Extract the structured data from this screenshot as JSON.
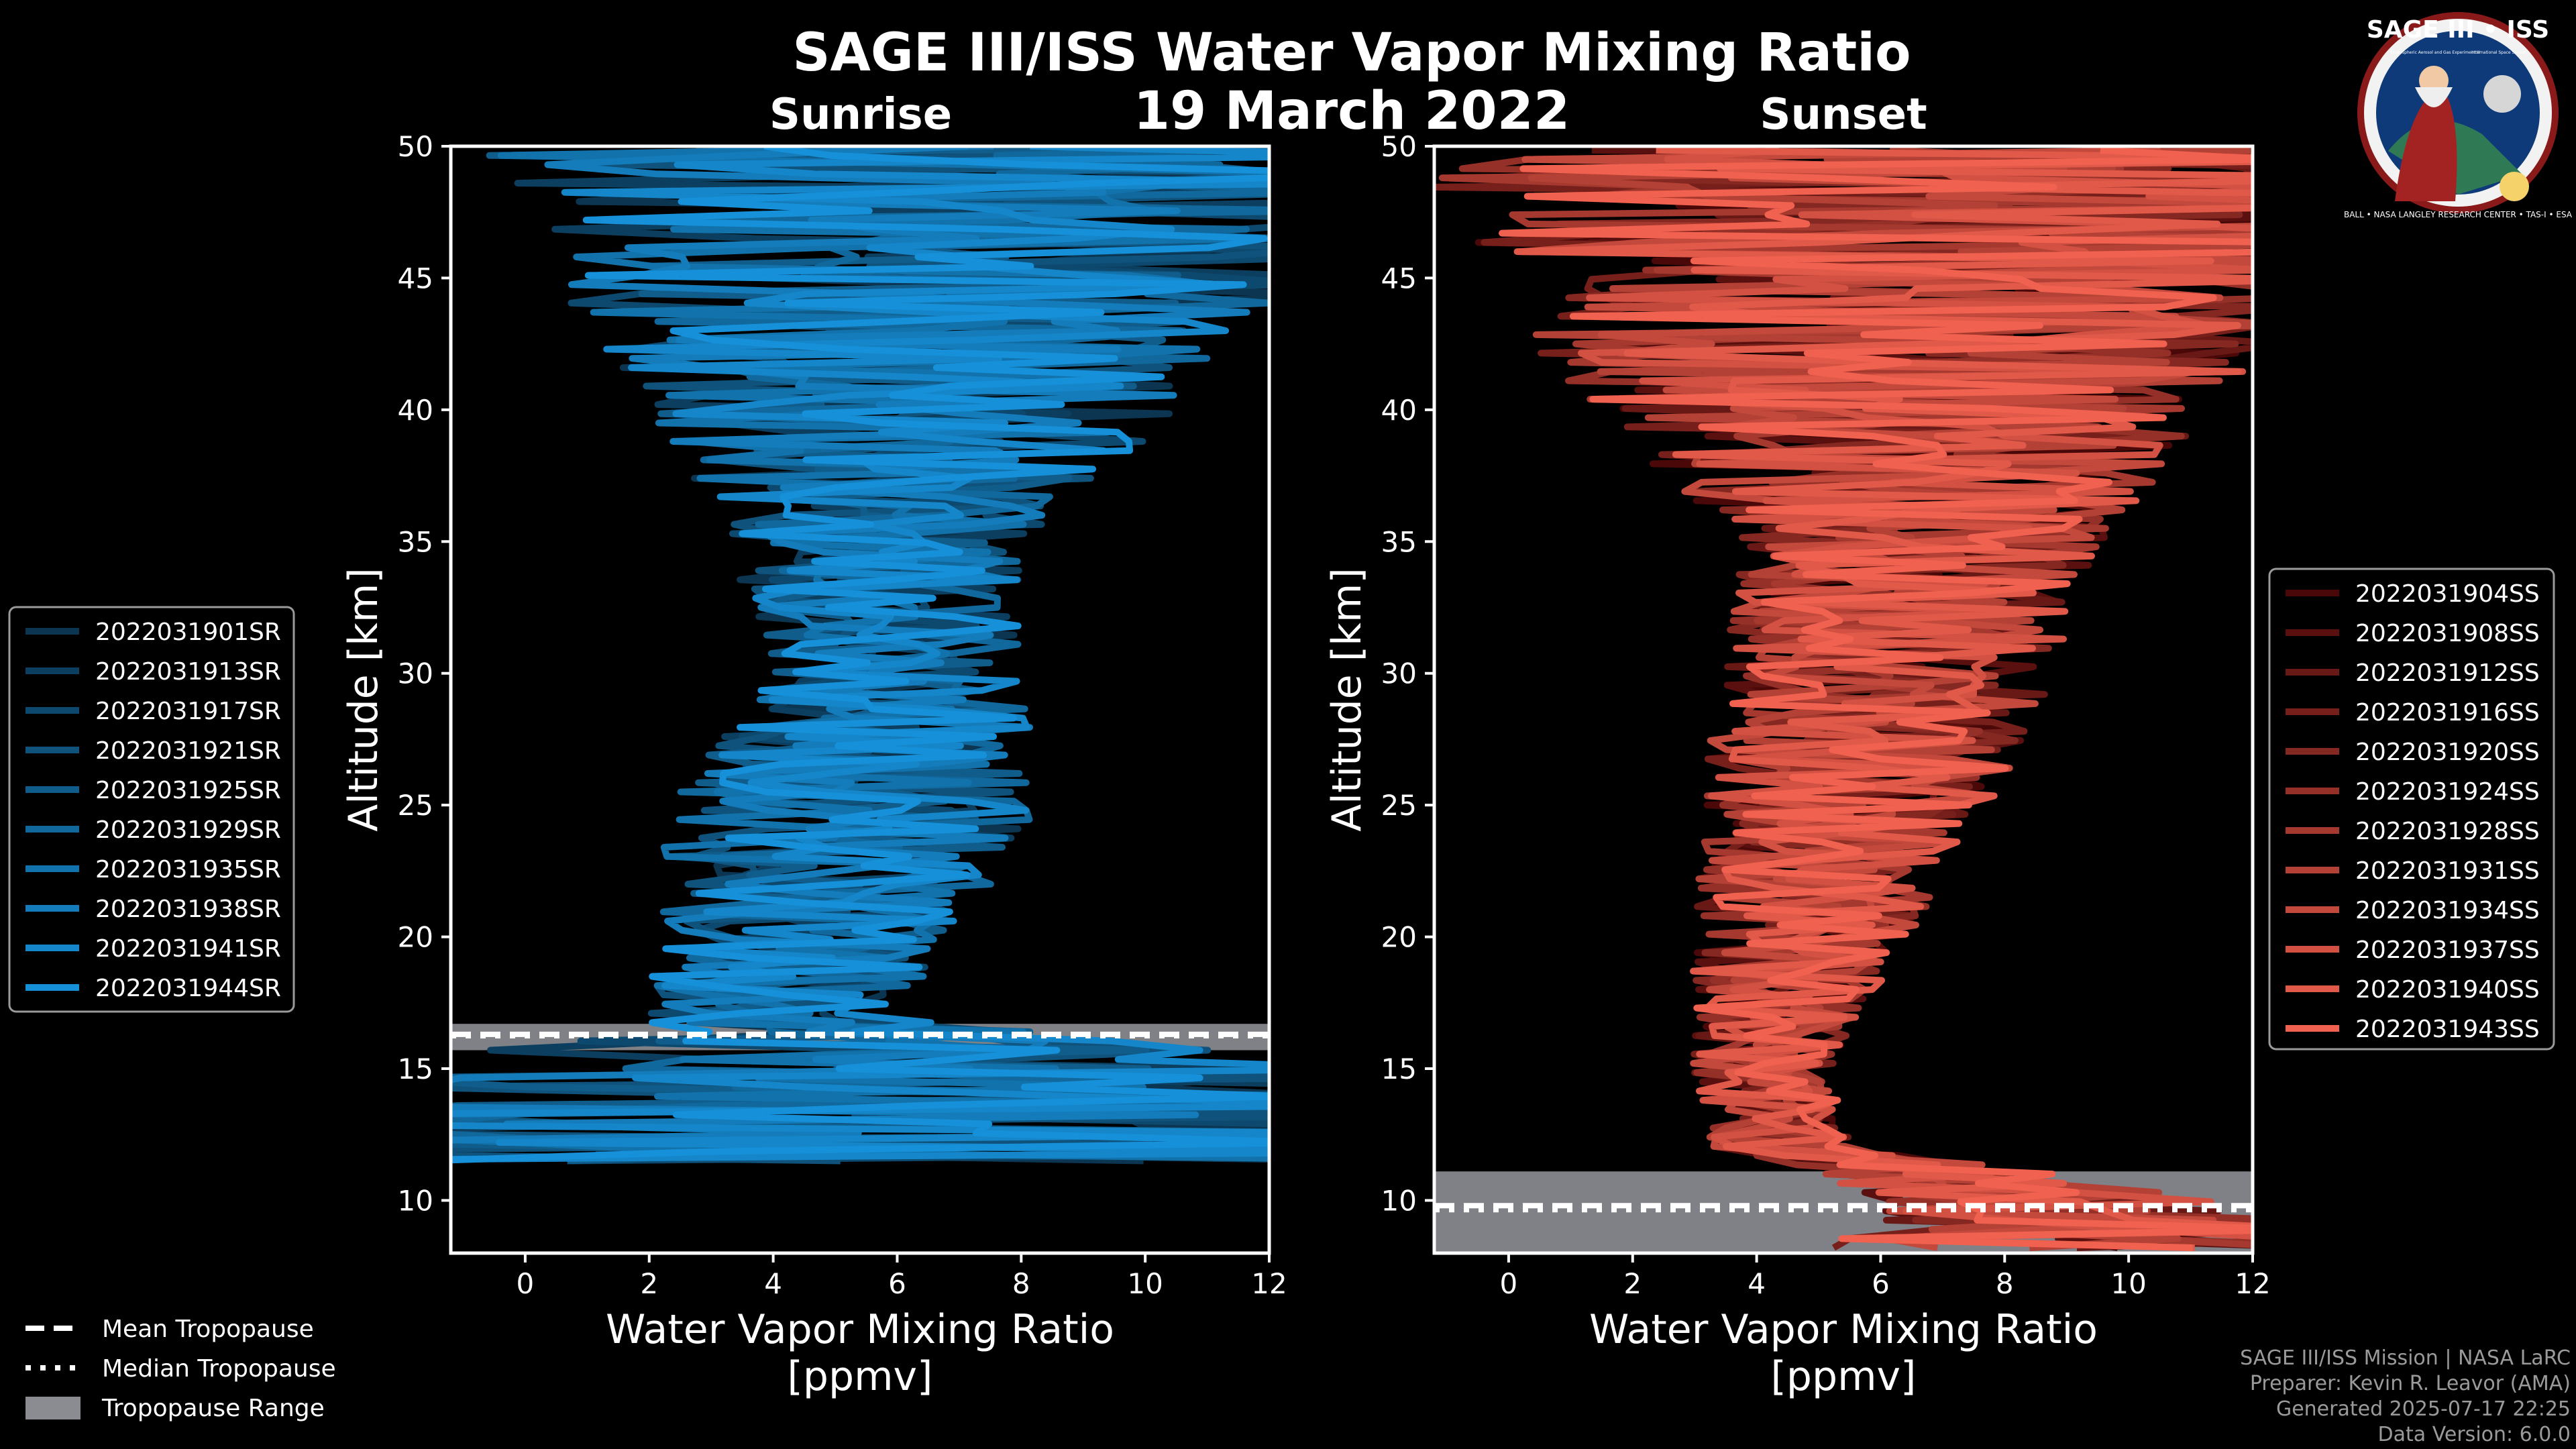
{
  "title": "SAGE III/ISS Water Vapor Mixing Ratio",
  "date": "19 March 2022",
  "logo": {
    "top_text": "SAGE III • ISS",
    "small_left": "Stratospheric Aerosol and Gas Experiment III",
    "small_right": "International Space Station",
    "ring_text": "BALL • NASA LANGLEY RESEARCH CENTER • TAS-I • ESA"
  },
  "credits": {
    "line1": "SAGE III/ISS Mission | NASA LaRC",
    "line2": "Preparer: Kevin R. Leavor (AMA)",
    "line3": "Generated 2025-07-17 22:25",
    "line4": "Data Version: 6.0.0"
  },
  "tropo_legend": [
    {
      "label": "Mean Tropopause",
      "style": "dashed"
    },
    {
      "label": "Median Tropopause",
      "style": "dotted"
    },
    {
      "label": "Tropopause Range",
      "style": "patch"
    }
  ],
  "chart_data": [
    {
      "type": "line",
      "title": "Sunrise",
      "xlabel": "Water Vapor Mixing Ratio\n[ppmv]",
      "ylabel": "Altitude [km]",
      "xlim": [
        -1.2,
        12
      ],
      "ylim": [
        8,
        50
      ],
      "xticks": [
        0,
        2,
        4,
        6,
        8,
        10,
        12
      ],
      "yticks": [
        10,
        15,
        20,
        25,
        30,
        35,
        40,
        45,
        50
      ],
      "color_dark": "#0b3550",
      "color_bright": "#1690d8",
      "tropopause": {
        "mean": 16.3,
        "median": 16.4,
        "range": [
          15.7,
          16.7
        ]
      },
      "series": [
        {
          "name": "2022031901SR"
        },
        {
          "name": "2022031913SR"
        },
        {
          "name": "2022031917SR"
        },
        {
          "name": "2022031921SR"
        },
        {
          "name": "2022031925SR"
        },
        {
          "name": "2022031929SR"
        },
        {
          "name": "2022031935SR"
        },
        {
          "name": "2022031938SR"
        },
        {
          "name": "2022031941SR"
        },
        {
          "name": "2022031944SR"
        }
      ],
      "profile": {
        "center": [
          [
            11.5,
            6
          ],
          [
            15,
            6
          ],
          [
            17,
            4
          ],
          [
            20,
            4.6
          ],
          [
            25,
            5.3
          ],
          [
            30,
            6.1
          ],
          [
            35,
            5.6
          ],
          [
            40,
            6.4
          ],
          [
            45,
            6.8
          ],
          [
            50,
            7
          ]
        ],
        "spread": [
          [
            11.5,
            8
          ],
          [
            15,
            5
          ],
          [
            17,
            1.3
          ],
          [
            25,
            1.9
          ],
          [
            30,
            1.3
          ],
          [
            35,
            1.5
          ],
          [
            40,
            2.8
          ],
          [
            45,
            4
          ],
          [
            50,
            5
          ]
        ]
      }
    },
    {
      "type": "line",
      "title": "Sunset",
      "xlabel": "Water Vapor Mixing Ratio\n[ppmv]",
      "ylabel": "Altitude [km]",
      "xlim": [
        -1.2,
        12
      ],
      "ylim": [
        8,
        50
      ],
      "xticks": [
        0,
        2,
        4,
        6,
        8,
        10,
        12
      ],
      "yticks": [
        10,
        15,
        20,
        25,
        30,
        35,
        40,
        45,
        50
      ],
      "color_dark": "#4a0808",
      "color_bright": "#f0614f",
      "tropopause": {
        "mean": 9.8,
        "median": 9.8,
        "range": [
          8,
          11.1
        ]
      },
      "series": [
        {
          "name": "2022031904SS"
        },
        {
          "name": "2022031908SS"
        },
        {
          "name": "2022031912SS"
        },
        {
          "name": "2022031916SS"
        },
        {
          "name": "2022031920SS"
        },
        {
          "name": "2022031924SS"
        },
        {
          "name": "2022031928SS"
        },
        {
          "name": "2022031931SS"
        },
        {
          "name": "2022031934SS"
        },
        {
          "name": "2022031937SS"
        },
        {
          "name": "2022031940SS"
        },
        {
          "name": "2022031943SS"
        }
      ],
      "profile": {
        "center": [
          [
            8.2,
            10
          ],
          [
            10,
            9
          ],
          [
            12,
            4.4
          ],
          [
            15,
            4.1
          ],
          [
            20,
            4.7
          ],
          [
            25,
            5.5
          ],
          [
            30,
            6.1
          ],
          [
            35,
            6.7
          ],
          [
            40,
            6.3
          ],
          [
            45,
            6.5
          ],
          [
            50,
            7
          ]
        ],
        "spread": [
          [
            8.2,
            3
          ],
          [
            12,
            0.7
          ],
          [
            15,
            0.7
          ],
          [
            20,
            1.1
          ],
          [
            25,
            1.5
          ],
          [
            30,
            1.7
          ],
          [
            35,
            1.8
          ],
          [
            40,
            3.2
          ],
          [
            45,
            4.5
          ],
          [
            50,
            5.5
          ]
        ]
      }
    }
  ]
}
